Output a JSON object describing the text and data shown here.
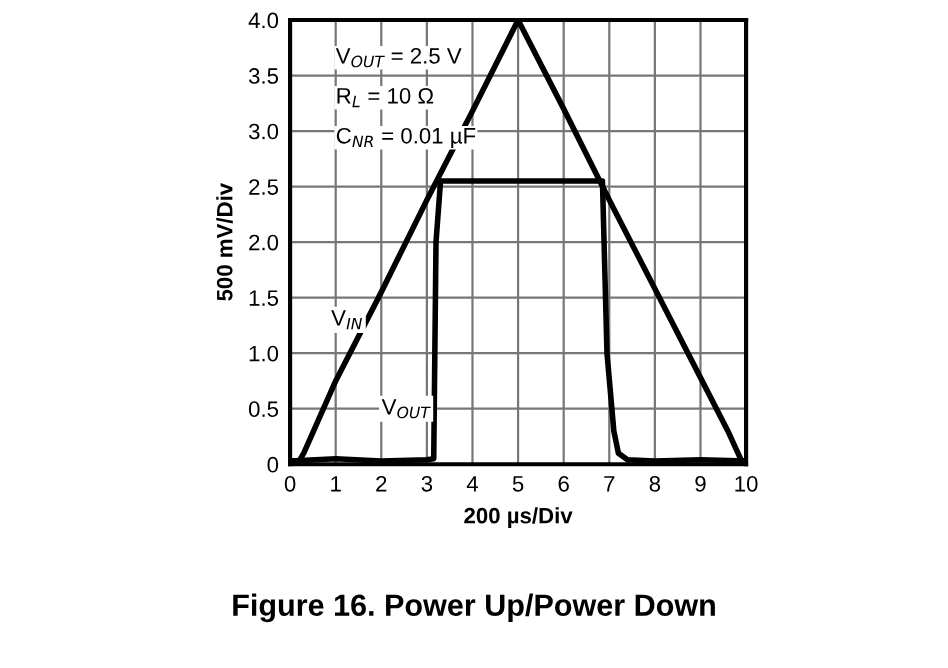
{
  "chart_data": {
    "type": "line",
    "title": "Figure 16. Power Up/Power Down",
    "xlabel": "200 µs/Div",
    "ylabel": "500 mV/Div",
    "annotations": [
      "V$_{OUT}$ = 2.5 V",
      "R$_{L}$ = 10 Ω",
      "C$_{NR}$ = 0.01 µF"
    ],
    "series": [
      {
        "name": "V$_{IN}$",
        "color": "#000000",
        "x": [
          0,
          0.2,
          0.3,
          1,
          2,
          3,
          4,
          5,
          6,
          7,
          8,
          9,
          9.6,
          9.9,
          10
        ],
        "values": [
          0.03,
          0.03,
          0.1,
          0.75,
          1.55,
          2.38,
          3.18,
          4.0,
          3.2,
          2.38,
          1.58,
          0.78,
          0.3,
          0.03,
          0.03
        ]
      },
      {
        "name": "V$_{OUT}$",
        "color": "#000000",
        "x": [
          0,
          1,
          2,
          3,
          3.15,
          3.2,
          3.3,
          4,
          5,
          6,
          6.85,
          6.95,
          7.1,
          7.2,
          7.4,
          8,
          9,
          10
        ],
        "values": [
          0.03,
          0.05,
          0.03,
          0.04,
          0.05,
          2.0,
          2.55,
          2.55,
          2.55,
          2.55,
          2.55,
          1.0,
          0.3,
          0.1,
          0.04,
          0.03,
          0.04,
          0.03
        ]
      }
    ],
    "xlim": [
      0,
      10
    ],
    "ylim": [
      0,
      4
    ],
    "xticks": [
      0,
      1,
      2,
      3,
      4,
      5,
      6,
      7,
      8,
      9,
      10
    ],
    "yticks": [
      {
        "value": 0,
        "label": "0"
      },
      {
        "value": 0.5,
        "label": "0.5"
      },
      {
        "value": 1,
        "label": "1.0"
      },
      {
        "value": 1.5,
        "label": "1.5"
      },
      {
        "value": 2,
        "label": "2.0"
      },
      {
        "value": 2.5,
        "label": "2.5"
      },
      {
        "value": 3,
        "label": "3.0"
      },
      {
        "value": 3.5,
        "label": "3.5"
      },
      {
        "value": 4,
        "label": "4.0"
      }
    ],
    "grid": true,
    "legend": false,
    "line_style": "solid",
    "marker": "none"
  }
}
